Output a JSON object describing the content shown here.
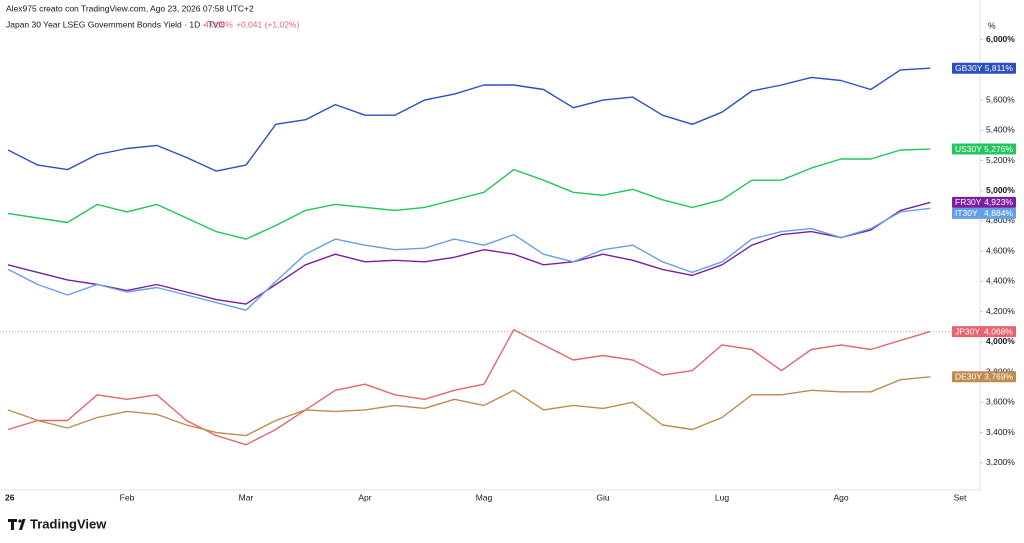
{
  "header": {
    "credit": "Alex975 creato con TradingView.com, Ago 23, 2026 07:58 UTC+2",
    "symbol": "Japan 30 Year LSEG Government Bonds Yield · 1D · TVC",
    "last": "4,068%",
    "change": "+0,041 (+1,02%)"
  },
  "footer": {
    "brand": "TradingView"
  },
  "chart_data": {
    "type": "line",
    "y_unit": "%",
    "categories": [
      "26",
      null,
      null,
      null,
      "Feb",
      null,
      null,
      null,
      "Mar",
      null,
      null,
      null,
      "Apr",
      null,
      null,
      null,
      "Mag",
      null,
      null,
      null,
      "Giu",
      null,
      null,
      null,
      "Lug",
      null,
      null,
      null,
      "Ago",
      null,
      null,
      null,
      "Set"
    ],
    "ylim": [
      3.02,
      6.13
    ],
    "yticks": [
      {
        "value": 3.2,
        "label": "3,200%"
      },
      {
        "value": 3.4,
        "label": "3,400%"
      },
      {
        "value": 3.6,
        "label": "3,600%"
      },
      {
        "value": 3.8,
        "label": "3,800%"
      },
      {
        "value": 4.0,
        "label": "4,000%"
      },
      {
        "value": 4.2,
        "label": "4,200%"
      },
      {
        "value": 4.4,
        "label": "4,400%"
      },
      {
        "value": 4.6,
        "label": "4,600%"
      },
      {
        "value": 4.8,
        "label": "4,800%"
      },
      {
        "value": 5.0,
        "label": "5,000%"
      },
      {
        "value": 5.2,
        "label": "5,200%"
      },
      {
        "value": 5.4,
        "label": "5,400%"
      },
      {
        "value": 5.6,
        "label": "5,600%"
      },
      {
        "value": 5.8,
        "label": "5,800%"
      },
      {
        "value": 6.0,
        "label": "6,000%"
      }
    ],
    "grid": false,
    "series": [
      {
        "name": "GB30Y",
        "color": "#2b4fc4",
        "values": [
          5.27,
          5.17,
          5.14,
          5.24,
          5.28,
          5.3,
          5.22,
          5.13,
          5.17,
          5.44,
          5.47,
          5.57,
          5.5,
          5.5,
          5.6,
          5.64,
          5.7,
          5.7,
          5.67,
          5.55,
          5.6,
          5.62,
          5.5,
          5.44,
          5.52,
          5.66,
          5.7,
          5.75,
          5.73,
          5.67,
          5.8,
          5.811,
          null
        ],
        "value_labels": [
          null,
          null,
          null,
          null,
          null,
          null,
          null,
          null,
          null,
          null,
          null,
          null,
          null,
          null,
          null,
          null,
          null,
          null,
          null,
          null,
          null,
          null,
          null,
          null,
          null,
          null,
          null,
          null,
          null,
          null,
          null,
          "5,811%",
          null
        ]
      },
      {
        "name": "US30Y",
        "color": "#22c55e",
        "values": [
          4.85,
          4.82,
          4.79,
          4.91,
          4.86,
          4.91,
          4.82,
          4.73,
          4.68,
          4.77,
          4.87,
          4.91,
          4.89,
          4.87,
          4.89,
          4.94,
          4.99,
          5.14,
          5.07,
          4.99,
          4.97,
          5.01,
          4.94,
          4.89,
          4.94,
          5.07,
          5.07,
          5.15,
          5.21,
          5.21,
          5.27,
          5.276,
          null
        ],
        "value_labels": [
          null,
          null,
          null,
          null,
          null,
          null,
          null,
          null,
          null,
          null,
          null,
          null,
          null,
          null,
          null,
          null,
          null,
          null,
          null,
          null,
          null,
          null,
          null,
          null,
          null,
          null,
          null,
          null,
          null,
          null,
          null,
          "5,276%",
          null
        ]
      },
      {
        "name": "FR30Y",
        "color": "#7b1fa2",
        "values": [
          4.51,
          4.46,
          4.41,
          4.38,
          4.34,
          4.38,
          4.33,
          4.28,
          4.25,
          4.38,
          4.51,
          4.58,
          4.53,
          4.54,
          4.53,
          4.56,
          4.61,
          4.58,
          4.51,
          4.53,
          4.58,
          4.54,
          4.48,
          4.44,
          4.51,
          4.64,
          4.71,
          4.73,
          4.69,
          4.74,
          4.87,
          4.923,
          null
        ],
        "value_labels": [
          null,
          null,
          null,
          null,
          null,
          null,
          null,
          null,
          null,
          null,
          null,
          null,
          null,
          null,
          null,
          null,
          null,
          null,
          null,
          null,
          null,
          null,
          null,
          null,
          null,
          null,
          null,
          null,
          null,
          null,
          null,
          "4,923%",
          null
        ]
      },
      {
        "name": "IT30Y",
        "color": "#64a0e8",
        "values": [
          4.48,
          4.38,
          4.31,
          4.38,
          4.33,
          4.36,
          4.31,
          4.26,
          4.21,
          4.4,
          4.58,
          4.68,
          4.64,
          4.61,
          4.62,
          4.68,
          4.64,
          4.71,
          4.58,
          4.53,
          4.61,
          4.64,
          4.53,
          4.46,
          4.53,
          4.68,
          4.73,
          4.75,
          4.69,
          4.75,
          4.86,
          4.884,
          null
        ],
        "value_labels": [
          null,
          null,
          null,
          null,
          null,
          null,
          null,
          null,
          null,
          null,
          null,
          null,
          null,
          null,
          null,
          null,
          null,
          null,
          null,
          null,
          null,
          null,
          null,
          null,
          null,
          null,
          null,
          null,
          null,
          null,
          null,
          "4,884%",
          null
        ]
      },
      {
        "name": "JP30Y",
        "color": "#e8636e",
        "values": [
          3.42,
          3.48,
          3.48,
          3.65,
          3.62,
          3.65,
          3.48,
          3.38,
          3.32,
          3.42,
          3.55,
          3.68,
          3.72,
          3.65,
          3.62,
          3.68,
          3.72,
          4.08,
          3.98,
          3.88,
          3.91,
          3.88,
          3.78,
          3.81,
          3.98,
          3.95,
          3.81,
          3.95,
          3.98,
          3.95,
          4.01,
          4.068,
          null
        ],
        "value_labels": [
          null,
          null,
          null,
          null,
          null,
          null,
          null,
          null,
          null,
          null,
          null,
          null,
          null,
          null,
          null,
          null,
          null,
          null,
          null,
          null,
          null,
          null,
          null,
          null,
          null,
          null,
          null,
          null,
          null,
          null,
          null,
          "4,068%",
          null
        ]
      },
      {
        "name": "DE30Y",
        "color": "#c08a4e",
        "values": [
          3.55,
          3.48,
          3.43,
          3.5,
          3.54,
          3.52,
          3.45,
          3.4,
          3.38,
          3.48,
          3.55,
          3.54,
          3.55,
          3.58,
          3.56,
          3.62,
          3.58,
          3.68,
          3.55,
          3.58,
          3.56,
          3.6,
          3.45,
          3.42,
          3.5,
          3.65,
          3.65,
          3.68,
          3.67,
          3.67,
          3.75,
          3.769,
          null
        ],
        "value_labels": [
          null,
          null,
          null,
          null,
          null,
          null,
          null,
          null,
          null,
          null,
          null,
          null,
          null,
          null,
          null,
          null,
          null,
          null,
          null,
          null,
          null,
          null,
          null,
          null,
          null,
          null,
          null,
          null,
          null,
          null,
          null,
          "3,769%",
          null
        ]
      }
    ]
  }
}
